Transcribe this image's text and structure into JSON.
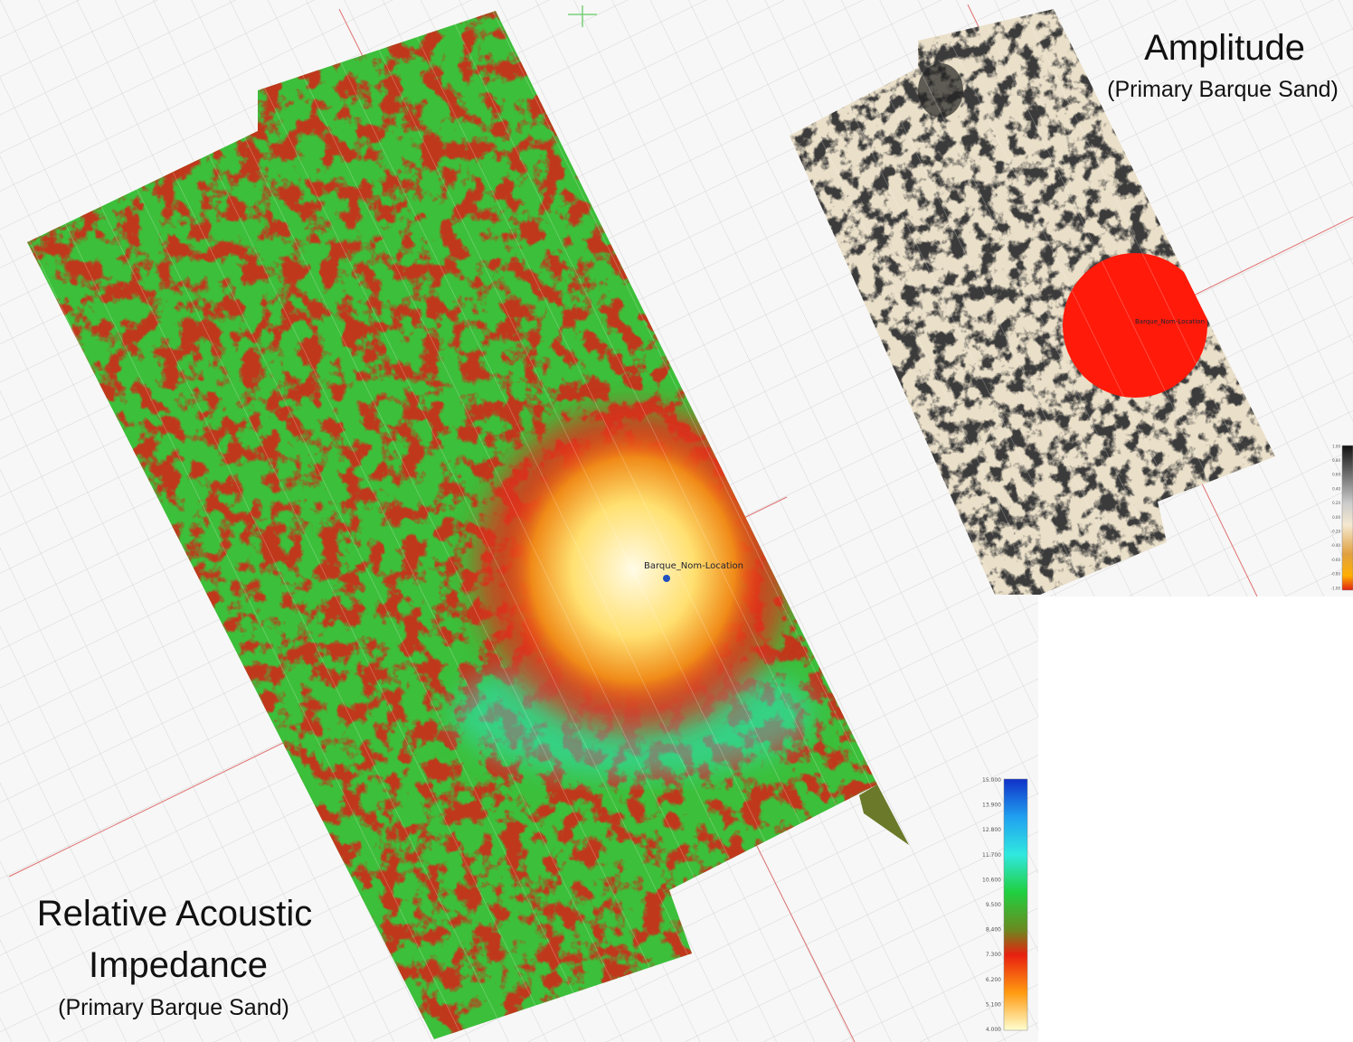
{
  "panels": {
    "amplitude": {
      "title": "Amplitude",
      "subtitle": "(Primary Barque Sand)",
      "well_label": "Barque_Nom-Location",
      "colorbar_labels": [
        "1.00",
        "0.80",
        "0.60",
        "0.40",
        "0.20",
        "0.00",
        "-0.20",
        "-0.40",
        "-0.60",
        "-0.80",
        "-1.00"
      ]
    },
    "impedance": {
      "title_lines": [
        "Relative Acoustic",
        "Impedance"
      ],
      "subtitle": "(Primary Barque Sand)",
      "well_label": "Barque_Nom-Location",
      "colorbar_labels": [
        "15.000",
        "13.900",
        "12.800",
        "11.700",
        "10.600",
        "9.500",
        "8.400",
        "7.300",
        "6.200",
        "5.100",
        "4.000"
      ]
    }
  }
}
